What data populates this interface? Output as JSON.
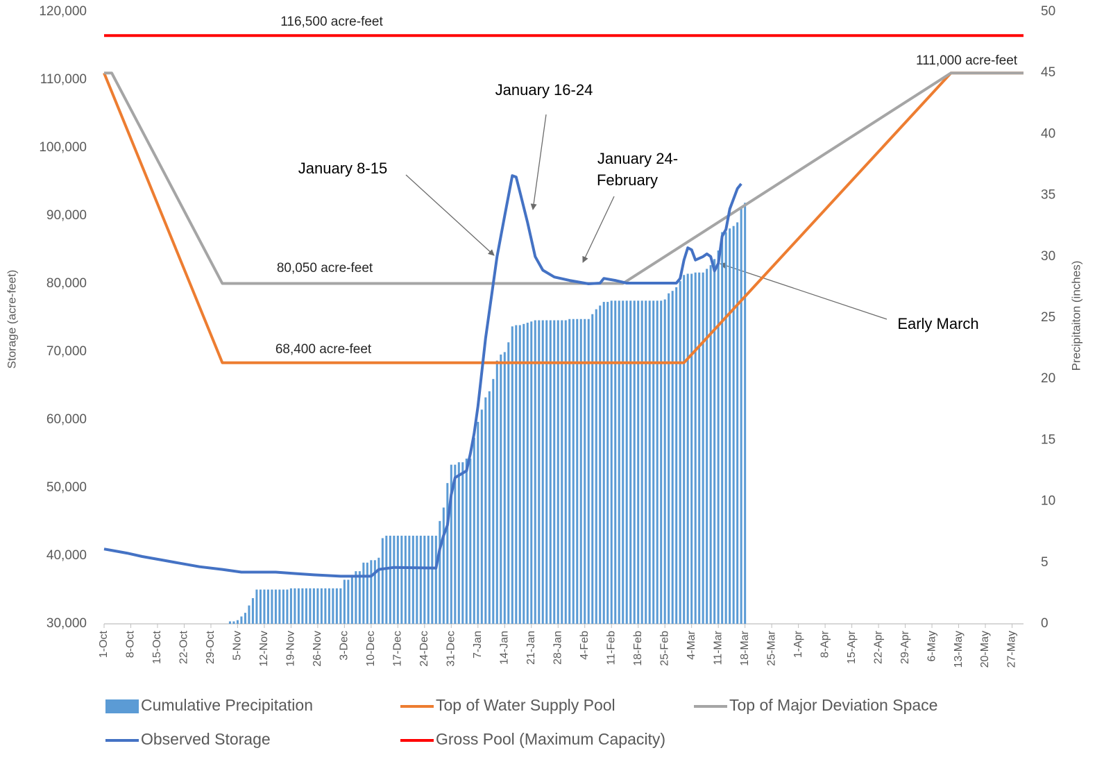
{
  "chart_data": {
    "type": "line",
    "y_label": "Storage (acre-feet)",
    "y2_label": "Precipitaiton (inches)",
    "xlim": [
      0,
      241
    ],
    "xticks": [
      {
        "value": 0,
        "label": "1-Oct"
      },
      {
        "value": 7,
        "label": "8-Oct"
      },
      {
        "value": 14,
        "label": "15-Oct"
      },
      {
        "value": 21,
        "label": "22-Oct"
      },
      {
        "value": 28,
        "label": "29-Oct"
      },
      {
        "value": 35,
        "label": "5-Nov"
      },
      {
        "value": 42,
        "label": "12-Nov"
      },
      {
        "value": 49,
        "label": "19-Nov"
      },
      {
        "value": 56,
        "label": "26-Nov"
      },
      {
        "value": 63,
        "label": "3-Dec"
      },
      {
        "value": 70,
        "label": "10-Dec"
      },
      {
        "value": 77,
        "label": "17-Dec"
      },
      {
        "value": 84,
        "label": "24-Dec"
      },
      {
        "value": 91,
        "label": "31-Dec"
      },
      {
        "value": 98,
        "label": "7-Jan"
      },
      {
        "value": 105,
        "label": "14-Jan"
      },
      {
        "value": 112,
        "label": "21-Jan"
      },
      {
        "value": 119,
        "label": "28-Jan"
      },
      {
        "value": 126,
        "label": "4-Feb"
      },
      {
        "value": 133,
        "label": "11-Feb"
      },
      {
        "value": 140,
        "label": "18-Feb"
      },
      {
        "value": 147,
        "label": "25-Feb"
      },
      {
        "value": 154,
        "label": "4-Mar"
      },
      {
        "value": 161,
        "label": "11-Mar"
      },
      {
        "value": 168,
        "label": "18-Mar"
      },
      {
        "value": 175,
        "label": "25-Mar"
      },
      {
        "value": 182,
        "label": "1-Apr"
      },
      {
        "value": 189,
        "label": "8-Apr"
      },
      {
        "value": 196,
        "label": "15-Apr"
      },
      {
        "value": 203,
        "label": "22-Apr"
      },
      {
        "value": 210,
        "label": "29-Apr"
      },
      {
        "value": 217,
        "label": "6-May"
      },
      {
        "value": 224,
        "label": "13-May"
      },
      {
        "value": 231,
        "label": "20-May"
      },
      {
        "value": 238,
        "label": "27-May"
      }
    ],
    "ylim": [
      30000,
      120000
    ],
    "yticks": [
      {
        "value": 30000,
        "label": "30,000"
      },
      {
        "value": 40000,
        "label": "40,000"
      },
      {
        "value": 50000,
        "label": "50,000"
      },
      {
        "value": 60000,
        "label": "60,000"
      },
      {
        "value": 70000,
        "label": "70,000"
      },
      {
        "value": 80000,
        "label": "80,000"
      },
      {
        "value": 90000,
        "label": "90,000"
      },
      {
        "value": 100000,
        "label": "100,000"
      },
      {
        "value": 110000,
        "label": "110,000"
      },
      {
        "value": 120000,
        "label": "120,000"
      }
    ],
    "y2lim": [
      0,
      50
    ],
    "y2ticks": [
      0,
      5,
      10,
      15,
      20,
      25,
      30,
      35,
      40,
      45,
      50
    ],
    "grid": false,
    "series": [
      {
        "name": "Cumulative Precipitation",
        "type": "bar",
        "axis": "y2",
        "color": "#5b9bd5",
        "x": [
          33,
          34,
          35,
          36,
          37,
          38,
          39,
          40,
          41,
          42,
          43,
          44,
          45,
          46,
          47,
          48,
          49,
          50,
          51,
          52,
          53,
          54,
          55,
          56,
          57,
          58,
          59,
          60,
          61,
          62,
          63,
          64,
          65,
          66,
          67,
          68,
          69,
          70,
          71,
          72,
          73,
          74,
          75,
          76,
          77,
          78,
          79,
          80,
          81,
          82,
          83,
          84,
          85,
          86,
          87,
          88,
          89,
          90,
          91,
          92,
          93,
          94,
          95,
          96,
          97,
          98,
          99,
          100,
          101,
          102,
          103,
          104,
          105,
          106,
          107,
          108,
          109,
          110,
          111,
          112,
          113,
          114,
          115,
          116,
          117,
          118,
          119,
          120,
          121,
          122,
          123,
          124,
          125,
          126,
          127,
          128,
          129,
          130,
          131,
          132,
          133,
          134,
          135,
          136,
          137,
          138,
          139,
          140,
          141,
          142,
          143,
          144,
          145,
          146,
          147,
          148,
          149,
          150,
          151,
          152,
          153,
          154,
          155,
          156,
          157,
          158,
          159,
          160,
          161,
          162,
          163,
          164,
          165,
          166,
          167,
          168
        ],
        "values": [
          0.2,
          0.2,
          0.3,
          0.6,
          0.9,
          1.5,
          2.1,
          2.8,
          2.8,
          2.8,
          2.8,
          2.8,
          2.8,
          2.8,
          2.8,
          2.8,
          2.9,
          2.9,
          2.9,
          2.9,
          2.9,
          2.9,
          2.9,
          2.9,
          2.9,
          2.9,
          2.9,
          2.9,
          2.9,
          2.9,
          3.6,
          3.6,
          4.0,
          4.3,
          4.3,
          5.0,
          5.0,
          5.2,
          5.2,
          5.4,
          7.0,
          7.2,
          7.2,
          7.2,
          7.2,
          7.2,
          7.2,
          7.2,
          7.2,
          7.2,
          7.2,
          7.2,
          7.2,
          7.2,
          7.2,
          8.4,
          9.5,
          11.5,
          13.0,
          13.0,
          13.2,
          13.2,
          13.5,
          13.5,
          15.2,
          16.5,
          17.5,
          18.5,
          19.0,
          20.0,
          21.5,
          22.0,
          22.2,
          23.0,
          24.3,
          24.4,
          24.4,
          24.5,
          24.6,
          24.7,
          24.8,
          24.8,
          24.8,
          24.8,
          24.8,
          24.8,
          24.8,
          24.8,
          24.8,
          24.9,
          24.9,
          24.9,
          24.9,
          24.9,
          24.9,
          25.3,
          25.7,
          26.0,
          26.3,
          26.3,
          26.4,
          26.4,
          26.4,
          26.4,
          26.4,
          26.4,
          26.4,
          26.4,
          26.4,
          26.4,
          26.4,
          26.4,
          26.4,
          26.4,
          26.5,
          27.0,
          27.2,
          27.5,
          28.0,
          28.5,
          28.6,
          28.6,
          28.7,
          28.7,
          28.7,
          29.0,
          29.3,
          29.8,
          30.5,
          32.0,
          32.0,
          32.3,
          32.5,
          32.8,
          34.0,
          34.4
        ]
      },
      {
        "name": "Top of Water Supply Pool",
        "color": "#ed7d31",
        "x": [
          0,
          31,
          152,
          222,
          241
        ],
        "values": [
          111000,
          68400,
          68400,
          111000,
          111000
        ]
      },
      {
        "name": "Top of Major Deviation Space",
        "color": "#a5a5a5",
        "x": [
          0,
          2,
          31,
          136,
          222,
          241
        ],
        "values": [
          111000,
          111000,
          80050,
          80050,
          111000,
          111000
        ]
      },
      {
        "name": "Observed Storage",
        "color": "#4472c4",
        "x": [
          0,
          3,
          6,
          10,
          15,
          20,
          25,
          31,
          36,
          45,
          50,
          55,
          62,
          70,
          72,
          76,
          87,
          88,
          89,
          90,
          91,
          92,
          95,
          96,
          97,
          98,
          100,
          103,
          105,
          107,
          108,
          109,
          111,
          113,
          115,
          118,
          122,
          127,
          130,
          131,
          134,
          137,
          150,
          151,
          152,
          153,
          154,
          155,
          157,
          158,
          159,
          160,
          161,
          162,
          163,
          164,
          166,
          167
        ],
        "values": [
          41000,
          40700,
          40400,
          39900,
          39400,
          38900,
          38400,
          38000,
          37600,
          37600,
          37400,
          37200,
          37000,
          37000,
          38000,
          38300,
          38200,
          41000,
          43000,
          44500,
          49000,
          51500,
          52500,
          55000,
          58000,
          62000,
          72000,
          84000,
          90000,
          95900,
          95700,
          93500,
          89000,
          84000,
          82000,
          81000,
          80500,
          80000,
          80100,
          80800,
          80500,
          80100,
          80100,
          80800,
          83500,
          85300,
          85000,
          83500,
          84000,
          84400,
          84000,
          81900,
          83000,
          87000,
          88000,
          91000,
          94000,
          94700
        ]
      },
      {
        "name": "Gross Pool (Maximum Capacity)",
        "color": "#ff0000",
        "x": [
          0,
          241
        ],
        "values": [
          116500,
          116500
        ]
      }
    ],
    "annotations": [
      {
        "text": "116,500 acre-feet"
      },
      {
        "text": "111,000 acre-feet"
      },
      {
        "text": "80,050 acre-feet"
      },
      {
        "text": "68,400 acre-feet"
      },
      {
        "text": "January 16-24"
      },
      {
        "text": "January 8-15"
      },
      {
        "text": [
          "January 24-",
          "February"
        ]
      },
      {
        "text": "Early March"
      }
    ]
  }
}
